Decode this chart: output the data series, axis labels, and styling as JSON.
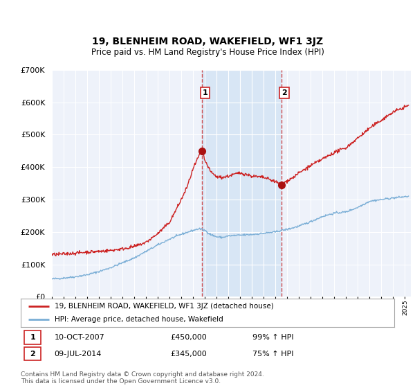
{
  "title": "19, BLENHEIM ROAD, WAKEFIELD, WF1 3JZ",
  "subtitle": "Price paid vs. HM Land Registry's House Price Index (HPI)",
  "hpi_label": "HPI: Average price, detached house, Wakefield",
  "property_label": "19, BLENHEIM ROAD, WAKEFIELD, WF1 3JZ (detached house)",
  "point1_label": "10-OCT-2007",
  "point1_price": "£450,000",
  "point1_pct": "99% ↑ HPI",
  "point2_label": "09-JUL-2014",
  "point2_price": "£345,000",
  "point2_pct": "75% ↑ HPI",
  "point1_year": 2007.78,
  "point1_value": 450000,
  "point2_year": 2014.52,
  "point2_value": 345000,
  "shaded_x_start": 2007.78,
  "shaded_x_end": 2014.52,
  "ylim": [
    0,
    700000
  ],
  "xlim_start": 1995,
  "xlim_end": 2025.5,
  "background_color": "#ffffff",
  "plot_bg_color": "#eef2fa",
  "grid_color": "#ffffff",
  "hpi_color": "#7aaed6",
  "property_color": "#cc2222",
  "shade_color": "#d8e6f5",
  "dashed_color": "#cc3333",
  "footnote": "Contains HM Land Registry data © Crown copyright and database right 2024.\nThis data is licensed under the Open Government Licence v3.0."
}
